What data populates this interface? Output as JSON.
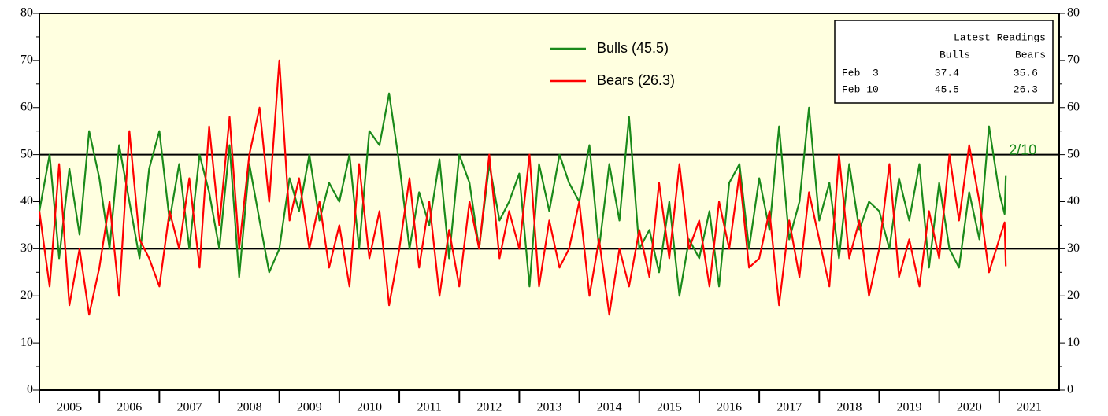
{
  "chart_data": {
    "type": "line",
    "x": [
      2005,
      2005.17,
      2005.33,
      2005.5,
      2005.67,
      2005.83,
      2006,
      2006.17,
      2006.33,
      2006.5,
      2006.67,
      2006.83,
      2007,
      2007.17,
      2007.33,
      2007.5,
      2007.67,
      2007.83,
      2008,
      2008.17,
      2008.33,
      2008.5,
      2008.67,
      2008.83,
      2009,
      2009.17,
      2009.33,
      2009.5,
      2009.67,
      2009.83,
      2010,
      2010.17,
      2010.33,
      2010.5,
      2010.67,
      2010.83,
      2011,
      2011.17,
      2011.33,
      2011.5,
      2011.67,
      2011.83,
      2012,
      2012.17,
      2012.33,
      2012.5,
      2012.67,
      2012.83,
      2013,
      2013.17,
      2013.33,
      2013.5,
      2013.67,
      2013.83,
      2014,
      2014.17,
      2014.33,
      2014.5,
      2014.67,
      2014.83,
      2015,
      2015.17,
      2015.33,
      2015.5,
      2015.67,
      2015.83,
      2016,
      2016.17,
      2016.33,
      2016.5,
      2016.67,
      2016.83,
      2017,
      2017.17,
      2017.33,
      2017.5,
      2017.67,
      2017.83,
      2018,
      2018.17,
      2018.33,
      2018.5,
      2018.67,
      2018.83,
      2019,
      2019.17,
      2019.33,
      2019.5,
      2019.67,
      2019.83,
      2020,
      2020.17,
      2020.33,
      2020.5,
      2020.67,
      2020.83,
      2021,
      2021.09,
      2021.11
    ],
    "series": [
      {
        "name": "Bulls (45.5)",
        "color": "#1a8a1a",
        "values": [
          38,
          50,
          28,
          47,
          33,
          55,
          45,
          30,
          52,
          40,
          28,
          47,
          55,
          36,
          48,
          30,
          50,
          42,
          30,
          52,
          24,
          48,
          36,
          25,
          30,
          45,
          38,
          50,
          36,
          44,
          40,
          50,
          30,
          55,
          52,
          63,
          48,
          30,
          42,
          35,
          49,
          28,
          50,
          44,
          30,
          48,
          36,
          40,
          46,
          22,
          48,
          38,
          50,
          44,
          40,
          52,
          30,
          48,
          36,
          58,
          30,
          34,
          25,
          40,
          20,
          32,
          28,
          38,
          22,
          44,
          48,
          30,
          45,
          34,
          56,
          32,
          40,
          60,
          36,
          44,
          28,
          48,
          34,
          40,
          38,
          30,
          45,
          36,
          48,
          26,
          44,
          30,
          26,
          42,
          32,
          56,
          42,
          37.4,
          45.5
        ]
      },
      {
        "name": "Bears (26.3)",
        "color": "#ff0000",
        "values": [
          38,
          22,
          48,
          18,
          30,
          16,
          26,
          40,
          20,
          55,
          32,
          28,
          22,
          38,
          30,
          45,
          26,
          56,
          35,
          58,
          30,
          50,
          60,
          40,
          70,
          36,
          45,
          30,
          40,
          26,
          35,
          22,
          48,
          28,
          38,
          18,
          30,
          45,
          26,
          40,
          20,
          34,
          22,
          40,
          30,
          50,
          28,
          38,
          30,
          50,
          22,
          36,
          26,
          30,
          40,
          20,
          32,
          16,
          30,
          22,
          34,
          24,
          44,
          28,
          48,
          30,
          36,
          22,
          40,
          30,
          46,
          26,
          28,
          38,
          18,
          36,
          24,
          42,
          32,
          22,
          50,
          28,
          36,
          20,
          30,
          48,
          24,
          32,
          22,
          38,
          28,
          50,
          36,
          52,
          40,
          25,
          32,
          35.6,
          26.3
        ]
      }
    ],
    "xlim": [
      2005,
      2022
    ],
    "xticks": [
      {
        "value": 2005.5,
        "label": "2005"
      },
      {
        "value": 2006.5,
        "label": "2006"
      },
      {
        "value": 2007.5,
        "label": "2007"
      },
      {
        "value": 2008.5,
        "label": "2008"
      },
      {
        "value": 2009.5,
        "label": "2009"
      },
      {
        "value": 2010.5,
        "label": "2010"
      },
      {
        "value": 2011.5,
        "label": "2011"
      },
      {
        "value": 2012.5,
        "label": "2012"
      },
      {
        "value": 2013.5,
        "label": "2013"
      },
      {
        "value": 2014.5,
        "label": "2014"
      },
      {
        "value": 2015.5,
        "label": "2015"
      },
      {
        "value": 2016.5,
        "label": "2016"
      },
      {
        "value": 2017.5,
        "label": "2017"
      },
      {
        "value": 2018.5,
        "label": "2018"
      },
      {
        "value": 2019.5,
        "label": "2019"
      },
      {
        "value": 2020.5,
        "label": "2020"
      },
      {
        "value": 2021.5,
        "label": "2021"
      }
    ],
    "ylim": [
      0,
      80
    ],
    "yticks": [
      0,
      10,
      20,
      30,
      40,
      50,
      60,
      70,
      80
    ],
    "reference_lines": [
      30,
      50
    ],
    "annotation": "2/10"
  },
  "table": {
    "title": "Latest Readings",
    "columns": [
      "Bulls",
      "Bears"
    ],
    "rows": [
      [
        "Feb  3",
        "37.4",
        "35.6"
      ],
      [
        "Feb 10",
        "45.5",
        "26.3"
      ]
    ]
  }
}
